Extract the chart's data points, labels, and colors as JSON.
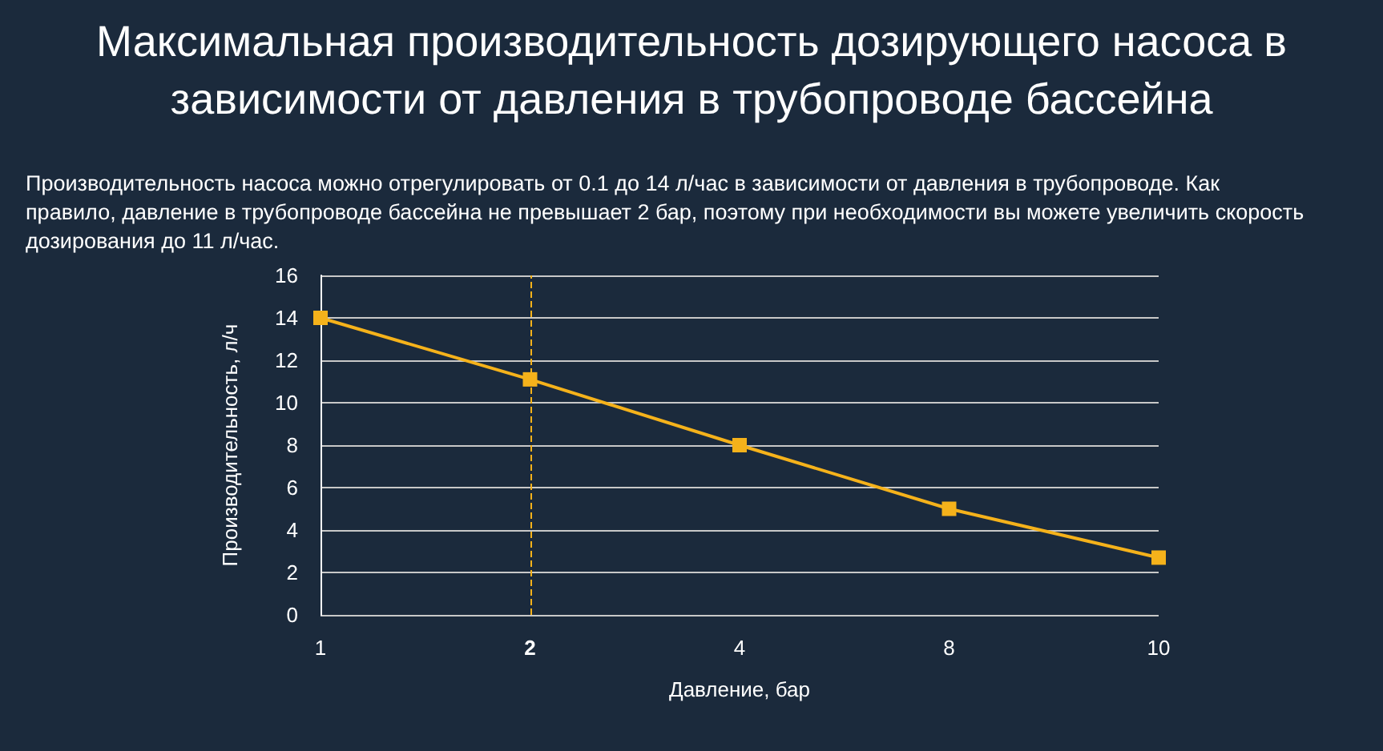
{
  "chart_data": {
    "type": "line",
    "title": "Максимальная производительность дозирующего насоса в зависимости от давления в трубопроводе бассейна",
    "subtitle": "Производительность насоса можно отрегулировать от 0.1 до 14 л/час в зависимости от давления в трубопроводе. Как правило, давление в трубопроводе бассейна не превышает 2 бар, поэтому при необходимости вы можете увеличить скорость дозирования до 11 л/час.",
    "xlabel": "Давление, бар",
    "ylabel": "Производительность, л/ч",
    "categories": [
      "1",
      "2",
      "4",
      "8",
      "10"
    ],
    "series": [
      {
        "color": "#f5b21b",
        "values": [
          14,
          11.1,
          8,
          5,
          2.7
        ]
      }
    ],
    "ylim": [
      0,
      16
    ],
    "yticks": [
      0,
      2,
      4,
      6,
      8,
      10,
      12,
      14,
      16
    ],
    "ref_lines": [
      {
        "axis": "x",
        "value": "2",
        "color": "#f5b21b",
        "line_style": "dashed"
      }
    ],
    "grid": "y",
    "marker": "square",
    "line_style": "solid"
  }
}
